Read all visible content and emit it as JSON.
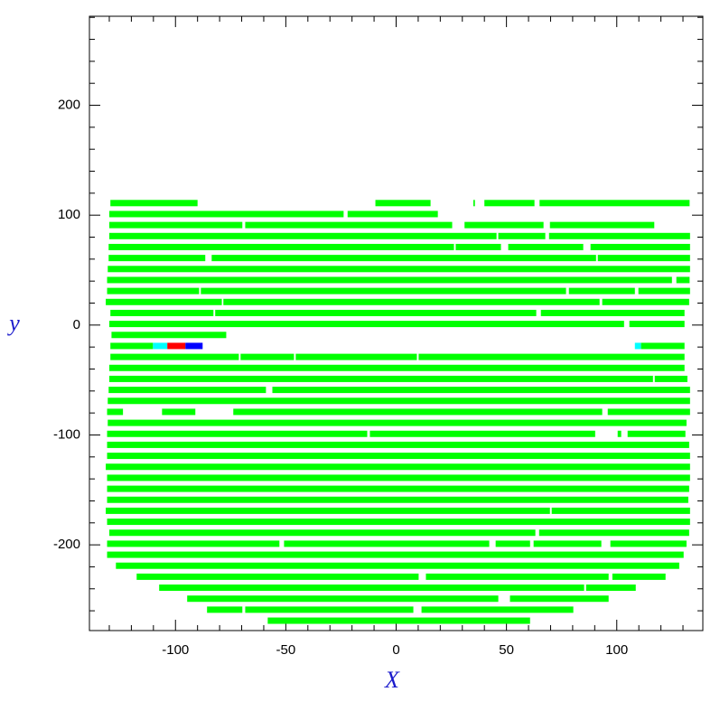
{
  "chart_data": {
    "type": "segments",
    "xlabel": "X",
    "ylabel": "y",
    "xlim": [
      -139,
      139
    ],
    "ylim": [
      -278,
      281
    ],
    "xticks": [
      -100,
      -50,
      0,
      50,
      100
    ],
    "yticks": [
      -200,
      -100,
      0,
      100,
      200
    ],
    "xminorticks": [
      -130,
      -120,
      -110,
      -90,
      -80,
      -70,
      -60,
      -40,
      -30,
      -20,
      -10,
      10,
      20,
      30,
      40,
      60,
      70,
      80,
      90,
      110,
      120,
      130
    ],
    "yminorticks": [
      -260,
      -240,
      -220,
      -180,
      -160,
      -140,
      -120,
      -80,
      -60,
      -40,
      -20,
      20,
      40,
      60,
      80,
      120,
      140,
      160,
      180,
      220,
      240,
      260,
      280
    ],
    "color": "#00ff00",
    "rows": [
      {
        "y": 111,
        "segments": [
          [
            -129.5,
            -90
          ],
          [
            -9.4,
            15.6
          ],
          [
            35,
            35.7
          ],
          [
            40,
            62.7
          ],
          [
            65,
            133
          ]
        ]
      },
      {
        "y": 101,
        "segments": [
          [
            -130,
            -23.8
          ],
          [
            -22,
            18.9
          ]
        ]
      },
      {
        "y": 91,
        "segments": [
          [
            -130,
            -69.7
          ],
          [
            -68.4,
            25.4
          ],
          [
            31,
            66.8
          ],
          [
            69.7,
            117
          ]
        ]
      },
      {
        "y": 81,
        "segments": [
          [
            -130,
            45.5
          ],
          [
            46.3,
            67.6
          ],
          [
            69.3,
            133.2
          ]
        ]
      },
      {
        "y": 71,
        "segments": [
          [
            -130.3,
            26.2
          ],
          [
            27,
            47.5
          ],
          [
            50.8,
            84.8
          ],
          [
            88.1,
            133.2
          ]
        ]
      },
      {
        "y": 61,
        "segments": [
          [
            -130.3,
            -86.5
          ],
          [
            -83.6,
            90.6
          ],
          [
            91.4,
            133.2
          ]
        ]
      },
      {
        "y": 51,
        "segments": [
          [
            -130.7,
            133.2
          ]
        ]
      },
      {
        "y": 41,
        "segments": [
          [
            -131,
            125
          ],
          [
            127,
            133
          ]
        ]
      },
      {
        "y": 31,
        "segments": [
          [
            -131,
            -89.3
          ],
          [
            -88.5,
            77
          ],
          [
            78.3,
            108.2
          ],
          [
            109.8,
            133.2
          ]
        ]
      },
      {
        "y": 21,
        "segments": [
          [
            -131.6,
            -79
          ],
          [
            -78.3,
            92.2
          ],
          [
            93.4,
            132.8
          ]
        ]
      },
      {
        "y": 11,
        "segments": [
          [
            -129.5,
            -82.8
          ],
          [
            -82,
            63.5
          ],
          [
            65.6,
            130.7
          ]
        ]
      },
      {
        "y": 1,
        "segments": [
          [
            -130,
            103.3
          ],
          [
            105.7,
            130.7
          ]
        ]
      },
      {
        "y": -9,
        "segments": [
          [
            -129,
            -77
          ]
        ]
      },
      {
        "y": -19,
        "segments": [
          [
            -129.5,
            -110.2
          ],
          {
            "x": [
              -110.2,
              -103.7
            ],
            "color": "#00ffff"
          },
          {
            "x": [
              -103.7,
              -95.5
            ],
            "color": "#ff0000"
          },
          {
            "x": [
              -95.5,
              -87.7
            ],
            "color": "#0000ff"
          },
          {
            "x": [
              108.2,
              111
            ],
            "color": "#00ffff"
          },
          [
            111,
            130.7
          ]
        ]
      },
      {
        "y": -29,
        "segments": [
          [
            -129.5,
            -71.3
          ],
          [
            -70.5,
            -46.3
          ],
          [
            -45.5,
            9.4
          ],
          [
            10.2,
            130.7
          ]
        ]
      },
      {
        "y": -39,
        "segments": [
          [
            -130,
            130.7
          ]
        ]
      },
      {
        "y": -49,
        "segments": [
          [
            -130,
            116.4
          ],
          [
            117.2,
            132
          ]
        ]
      },
      {
        "y": -59,
        "segments": [
          [
            -130.3,
            -59
          ],
          [
            -56.1,
            133.2
          ]
        ]
      },
      {
        "y": -69,
        "segments": [
          [
            -130.7,
            133.2
          ]
        ]
      },
      {
        "y": -79,
        "segments": [
          [
            -131,
            -123.8
          ],
          [
            -106.1,
            -91
          ],
          [
            -73.8,
            93.4
          ],
          [
            95.9,
            133.2
          ]
        ]
      },
      {
        "y": -89,
        "segments": [
          [
            -130.7,
            131.6
          ]
        ]
      },
      {
        "y": -99,
        "segments": [
          [
            -131,
            -13.1
          ],
          [
            -11.9,
            90.2
          ],
          [
            100.4,
            102
          ],
          [
            104.9,
            131.1
          ]
        ]
      },
      {
        "y": -109,
        "segments": [
          [
            -131,
            132.8
          ]
        ]
      },
      {
        "y": -119,
        "segments": [
          [
            -131,
            133.2
          ]
        ]
      },
      {
        "y": -129,
        "segments": [
          [
            -131.6,
            133.2
          ]
        ]
      },
      {
        "y": -139,
        "segments": [
          [
            -131,
            133.2
          ]
        ]
      },
      {
        "y": -149,
        "segments": [
          [
            -131,
            132.8
          ]
        ]
      },
      {
        "y": -159,
        "segments": [
          [
            -131,
            132.4
          ]
        ]
      },
      {
        "y": -169,
        "segments": [
          [
            -131.6,
            69.7
          ],
          [
            70.5,
            133.2
          ]
        ]
      },
      {
        "y": -179,
        "segments": [
          [
            -131,
            133.2
          ]
        ]
      },
      {
        "y": -189,
        "segments": [
          [
            -130,
            63.1
          ],
          [
            64.8,
            132.8
          ]
        ]
      },
      {
        "y": -199,
        "segments": [
          [
            -131,
            -52.9
          ],
          [
            -50.8,
            42.2
          ],
          [
            45.1,
            60.7
          ],
          [
            62.3,
            93
          ],
          [
            97.1,
            131.6
          ]
        ]
      },
      {
        "y": -209,
        "segments": [
          [
            -131,
            130.3
          ]
        ]
      },
      {
        "y": -219,
        "segments": [
          [
            -127,
            128.3
          ]
        ]
      },
      {
        "y": -229,
        "segments": [
          [
            -117.6,
            10.2
          ],
          [
            13.5,
            96.3
          ],
          [
            98,
            122.1
          ]
        ]
      },
      {
        "y": -239,
        "segments": [
          [
            -107.4,
            85.2
          ],
          [
            86.1,
            108.6
          ]
        ]
      },
      {
        "y": -249,
        "segments": [
          [
            -94.7,
            46.3
          ],
          [
            51.6,
            96.3
          ]
        ]
      },
      {
        "y": -259,
        "segments": [
          [
            -85.7,
            -69.7
          ],
          [
            -68.4,
            7.8
          ],
          [
            11.5,
            80.3
          ]
        ]
      },
      {
        "y": -269,
        "segments": [
          [
            -58.2,
            60.7
          ]
        ]
      }
    ]
  }
}
